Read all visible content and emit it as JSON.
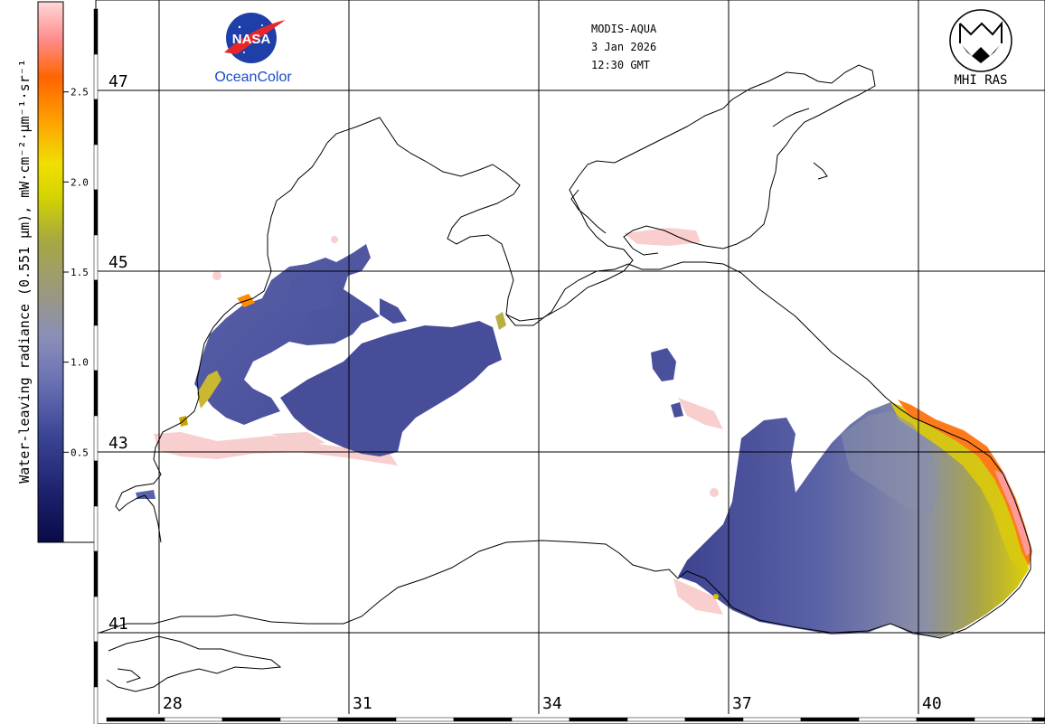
{
  "header": {
    "satellite": "MODIS-AQUA",
    "date": "3 Jan 2026",
    "time": "12:30 GMT"
  },
  "logos": {
    "nasa_text": "NASA",
    "nasa_caption": "OceanColor",
    "mhi_caption": "MHI RAS"
  },
  "colorbar": {
    "label": "Water-leaving radiance (0.551 µm), mW·cm⁻²·µm⁻¹·sr⁻¹",
    "ticks": [
      {
        "value": 0.5,
        "label": "0.5"
      },
      {
        "value": 1.0,
        "label": "1.0"
      },
      {
        "value": 1.5,
        "label": "1.5"
      },
      {
        "value": 2.0,
        "label": "2.0"
      },
      {
        "value": 2.5,
        "label": "2.5"
      }
    ],
    "range": [
      0,
      3.0
    ],
    "colors": [
      "#0a0a4a",
      "#2a2f8a",
      "#5560b0",
      "#8a90b8",
      "#9c9a7a",
      "#b0b030",
      "#e0e000",
      "#ffaa00",
      "#ff6a00",
      "#ff8a8a",
      "#ffd0d0"
    ]
  },
  "grid": {
    "latitudes": [
      {
        "value": 47,
        "label": "47"
      },
      {
        "value": 45,
        "label": "45"
      },
      {
        "value": 43,
        "label": "43"
      },
      {
        "value": 41,
        "label": "41"
      }
    ],
    "longitudes": [
      {
        "value": 28,
        "label": "28"
      },
      {
        "value": 31,
        "label": "31"
      },
      {
        "value": 34,
        "label": "34"
      },
      {
        "value": 37,
        "label": "37"
      },
      {
        "value": 40,
        "label": "40"
      }
    ]
  },
  "colors": {
    "water_low": "#3b3f8f",
    "water_mid": "#5a63a8",
    "water_high": "#c9c23a",
    "coast_high": "#ff7a1a",
    "no_data_pink": "#f8c8c8",
    "coastline": "#000000"
  }
}
